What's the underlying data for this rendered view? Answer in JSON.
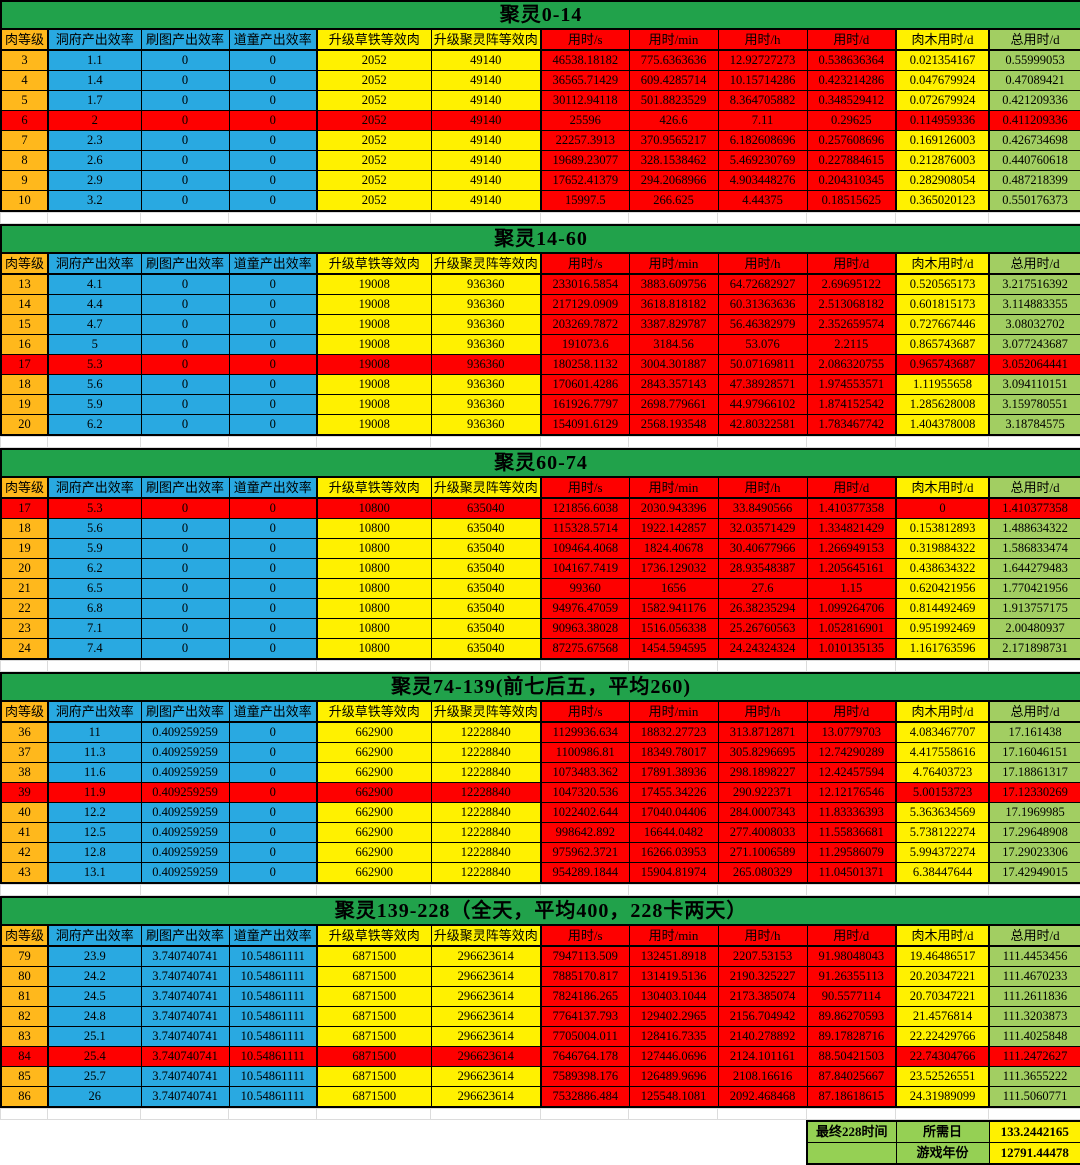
{
  "sheet": {
    "columns": [
      "肉等级",
      "洞府产出效率",
      "刷图产出效率",
      "道童产出效率",
      "升级草铁等效肉",
      "升级聚灵阵等效肉",
      "用时/s",
      "用时/min",
      "用时/h",
      "用时/d",
      "肉木用时/d",
      "总用时/d"
    ],
    "colors": {
      "title_green": "#21A24B",
      "total_light_green": "#A2CE62",
      "footer_green": "#95D054",
      "level_orange": "#FFB81C",
      "rate_blue": "#29A9E1",
      "equiv_yellow": "#FFF100",
      "time_red": "#FE0000"
    },
    "tables": [
      {
        "title": "聚灵0-14",
        "rows": [
          {
            "highlight": false,
            "cells": [
              "3",
              "1.1",
              "0",
              "0",
              "2052",
              "49140",
              "46538.18182",
              "775.6363636",
              "12.92727273",
              "0.538636364",
              "0.021354167",
              "0.55999053"
            ]
          },
          {
            "highlight": false,
            "cells": [
              "4",
              "1.4",
              "0",
              "0",
              "2052",
              "49140",
              "36565.71429",
              "609.4285714",
              "10.15714286",
              "0.423214286",
              "0.047679924",
              "0.47089421"
            ]
          },
          {
            "highlight": false,
            "cells": [
              "5",
              "1.7",
              "0",
              "0",
              "2052",
              "49140",
              "30112.94118",
              "501.8823529",
              "8.364705882",
              "0.348529412",
              "0.072679924",
              "0.421209336"
            ]
          },
          {
            "highlight": true,
            "cells": [
              "6",
              "2",
              "0",
              "0",
              "2052",
              "49140",
              "25596",
              "426.6",
              "7.11",
              "0.29625",
              "0.114959336",
              "0.411209336"
            ]
          },
          {
            "highlight": false,
            "cells": [
              "7",
              "2.3",
              "0",
              "0",
              "2052",
              "49140",
              "22257.3913",
              "370.9565217",
              "6.182608696",
              "0.257608696",
              "0.169126003",
              "0.426734698"
            ]
          },
          {
            "highlight": false,
            "cells": [
              "8",
              "2.6",
              "0",
              "0",
              "2052",
              "49140",
              "19689.23077",
              "328.1538462",
              "5.469230769",
              "0.227884615",
              "0.212876003",
              "0.440760618"
            ]
          },
          {
            "highlight": false,
            "cells": [
              "9",
              "2.9",
              "0",
              "0",
              "2052",
              "49140",
              "17652.41379",
              "294.2068966",
              "4.903448276",
              "0.204310345",
              "0.282908054",
              "0.487218399"
            ]
          },
          {
            "highlight": false,
            "cells": [
              "10",
              "3.2",
              "0",
              "0",
              "2052",
              "49140",
              "15997.5",
              "266.625",
              "4.44375",
              "0.18515625",
              "0.365020123",
              "0.550176373"
            ]
          }
        ]
      },
      {
        "title": "聚灵14-60",
        "rows": [
          {
            "highlight": false,
            "cells": [
              "13",
              "4.1",
              "0",
              "0",
              "19008",
              "936360",
              "233016.5854",
              "3883.609756",
              "64.72682927",
              "2.69695122",
              "0.520565173",
              "3.217516392"
            ]
          },
          {
            "highlight": false,
            "cells": [
              "14",
              "4.4",
              "0",
              "0",
              "19008",
              "936360",
              "217129.0909",
              "3618.818182",
              "60.31363636",
              "2.513068182",
              "0.601815173",
              "3.114883355"
            ]
          },
          {
            "highlight": false,
            "cells": [
              "15",
              "4.7",
              "0",
              "0",
              "19008",
              "936360",
              "203269.7872",
              "3387.829787",
              "56.46382979",
              "2.352659574",
              "0.727667446",
              "3.08032702"
            ]
          },
          {
            "highlight": false,
            "cells": [
              "16",
              "5",
              "0",
              "0",
              "19008",
              "936360",
              "191073.6",
              "3184.56",
              "53.076",
              "2.2115",
              "0.865743687",
              "3.077243687"
            ]
          },
          {
            "highlight": true,
            "cells": [
              "17",
              "5.3",
              "0",
              "0",
              "19008",
              "936360",
              "180258.1132",
              "3004.301887",
              "50.07169811",
              "2.086320755",
              "0.965743687",
              "3.052064441"
            ]
          },
          {
            "highlight": false,
            "cells": [
              "18",
              "5.6",
              "0",
              "0",
              "19008",
              "936360",
              "170601.4286",
              "2843.357143",
              "47.38928571",
              "1.974553571",
              "1.11955658",
              "3.094110151"
            ]
          },
          {
            "highlight": false,
            "cells": [
              "19",
              "5.9",
              "0",
              "0",
              "19008",
              "936360",
              "161926.7797",
              "2698.779661",
              "44.97966102",
              "1.874152542",
              "1.285628008",
              "3.159780551"
            ]
          },
          {
            "highlight": false,
            "cells": [
              "20",
              "6.2",
              "0",
              "0",
              "19008",
              "936360",
              "154091.6129",
              "2568.193548",
              "42.80322581",
              "1.783467742",
              "1.404378008",
              "3.18784575"
            ]
          }
        ]
      },
      {
        "title": "聚灵60-74",
        "rows": [
          {
            "highlight": true,
            "cells": [
              "17",
              "5.3",
              "0",
              "0",
              "10800",
              "635040",
              "121856.6038",
              "2030.943396",
              "33.8490566",
              "1.410377358",
              "0",
              "1.410377358"
            ]
          },
          {
            "highlight": false,
            "cells": [
              "18",
              "5.6",
              "0",
              "0",
              "10800",
              "635040",
              "115328.5714",
              "1922.142857",
              "32.03571429",
              "1.334821429",
              "0.153812893",
              "1.488634322"
            ]
          },
          {
            "highlight": false,
            "cells": [
              "19",
              "5.9",
              "0",
              "0",
              "10800",
              "635040",
              "109464.4068",
              "1824.40678",
              "30.40677966",
              "1.266949153",
              "0.319884322",
              "1.586833474"
            ]
          },
          {
            "highlight": false,
            "cells": [
              "20",
              "6.2",
              "0",
              "0",
              "10800",
              "635040",
              "104167.7419",
              "1736.129032",
              "28.93548387",
              "1.205645161",
              "0.438634322",
              "1.644279483"
            ]
          },
          {
            "highlight": false,
            "cells": [
              "21",
              "6.5",
              "0",
              "0",
              "10800",
              "635040",
              "99360",
              "1656",
              "27.6",
              "1.15",
              "0.620421956",
              "1.770421956"
            ]
          },
          {
            "highlight": false,
            "cells": [
              "22",
              "6.8",
              "0",
              "0",
              "10800",
              "635040",
              "94976.47059",
              "1582.941176",
              "26.38235294",
              "1.099264706",
              "0.814492469",
              "1.913757175"
            ]
          },
          {
            "highlight": false,
            "cells": [
              "23",
              "7.1",
              "0",
              "0",
              "10800",
              "635040",
              "90963.38028",
              "1516.056338",
              "25.26760563",
              "1.052816901",
              "0.951992469",
              "2.00480937"
            ]
          },
          {
            "highlight": false,
            "cells": [
              "24",
              "7.4",
              "0",
              "0",
              "10800",
              "635040",
              "87275.67568",
              "1454.594595",
              "24.24324324",
              "1.010135135",
              "1.161763596",
              "2.171898731"
            ]
          }
        ]
      },
      {
        "title": "聚灵74-139(前七后五，平均260)",
        "rows": [
          {
            "highlight": false,
            "cells": [
              "36",
              "11",
              "0.409259259",
              "0",
              "662900",
              "12228840",
              "1129936.634",
              "18832.27723",
              "313.8712871",
              "13.0779703",
              "4.083467707",
              "17.161438"
            ]
          },
          {
            "highlight": false,
            "cells": [
              "37",
              "11.3",
              "0.409259259",
              "0",
              "662900",
              "12228840",
              "1100986.81",
              "18349.78017",
              "305.8296695",
              "12.74290289",
              "4.417558616",
              "17.16046151"
            ]
          },
          {
            "highlight": false,
            "cells": [
              "38",
              "11.6",
              "0.409259259",
              "0",
              "662900",
              "12228840",
              "1073483.362",
              "17891.38936",
              "298.1898227",
              "12.42457594",
              "4.76403723",
              "17.18861317"
            ]
          },
          {
            "highlight": true,
            "cells": [
              "39",
              "11.9",
              "0.409259259",
              "0",
              "662900",
              "12228840",
              "1047320.536",
              "17455.34226",
              "290.922371",
              "12.12176546",
              "5.00153723",
              "17.12330269"
            ]
          },
          {
            "highlight": false,
            "cells": [
              "40",
              "12.2",
              "0.409259259",
              "0",
              "662900",
              "12228840",
              "1022402.644",
              "17040.04406",
              "284.0007343",
              "11.83336393",
              "5.363634569",
              "17.1969985"
            ]
          },
          {
            "highlight": false,
            "cells": [
              "41",
              "12.5",
              "0.409259259",
              "0",
              "662900",
              "12228840",
              "998642.892",
              "16644.0482",
              "277.4008033",
              "11.55836681",
              "5.738122274",
              "17.29648908"
            ]
          },
          {
            "highlight": false,
            "cells": [
              "42",
              "12.8",
              "0.409259259",
              "0",
              "662900",
              "12228840",
              "975962.3721",
              "16266.03953",
              "271.1006589",
              "11.29586079",
              "5.994372274",
              "17.29023306"
            ]
          },
          {
            "highlight": false,
            "cells": [
              "43",
              "13.1",
              "0.409259259",
              "0",
              "662900",
              "12228840",
              "954289.1844",
              "15904.81974",
              "265.080329",
              "11.04501371",
              "6.38447644",
              "17.42949015"
            ]
          }
        ]
      },
      {
        "title": "聚灵139-228（全天，平均400，228卡两天）",
        "rows": [
          {
            "highlight": false,
            "cells": [
              "79",
              "23.9",
              "3.740740741",
              "10.54861111",
              "6871500",
              "296623614",
              "7947113.509",
              "132451.8918",
              "2207.53153",
              "91.98048043",
              "19.46486517",
              "111.4453456"
            ]
          },
          {
            "highlight": false,
            "cells": [
              "80",
              "24.2",
              "3.740740741",
              "10.54861111",
              "6871500",
              "296623614",
              "7885170.817",
              "131419.5136",
              "2190.325227",
              "91.26355113",
              "20.20347221",
              "111.4670233"
            ]
          },
          {
            "highlight": false,
            "cells": [
              "81",
              "24.5",
              "3.740740741",
              "10.54861111",
              "6871500",
              "296623614",
              "7824186.265",
              "130403.1044",
              "2173.385074",
              "90.5577114",
              "20.70347221",
              "111.2611836"
            ]
          },
          {
            "highlight": false,
            "cells": [
              "82",
              "24.8",
              "3.740740741",
              "10.54861111",
              "6871500",
              "296623614",
              "7764137.793",
              "129402.2965",
              "2156.704942",
              "89.86270593",
              "21.4576814",
              "111.3203873"
            ]
          },
          {
            "highlight": false,
            "cells": [
              "83",
              "25.1",
              "3.740740741",
              "10.54861111",
              "6871500",
              "296623614",
              "7705004.011",
              "128416.7335",
              "2140.278892",
              "89.17828716",
              "22.22429766",
              "111.4025848"
            ]
          },
          {
            "highlight": true,
            "cells": [
              "84",
              "25.4",
              "3.740740741",
              "10.54861111",
              "6871500",
              "296623614",
              "7646764.178",
              "127446.0696",
              "2124.101161",
              "88.50421503",
              "22.74304766",
              "111.2472627"
            ]
          },
          {
            "highlight": false,
            "cells": [
              "85",
              "25.7",
              "3.740740741",
              "10.54861111",
              "6871500",
              "296623614",
              "7589398.176",
              "126489.9696",
              "2108.16616",
              "87.84025667",
              "23.52526551",
              "111.3655222"
            ]
          },
          {
            "highlight": false,
            "cells": [
              "86",
              "26",
              "3.740740741",
              "10.54861111",
              "6871500",
              "296623614",
              "7532886.484",
              "125548.1081",
              "2092.468468",
              "87.18618615",
              "24.31989099",
              "111.5060771"
            ]
          }
        ]
      }
    ],
    "footer": {
      "col1": [
        "最终228时间",
        ""
      ],
      "rows": [
        {
          "name": "所需日",
          "value": "133.2442165"
        },
        {
          "name": "游戏年份",
          "value": "12791.44478"
        }
      ]
    }
  }
}
